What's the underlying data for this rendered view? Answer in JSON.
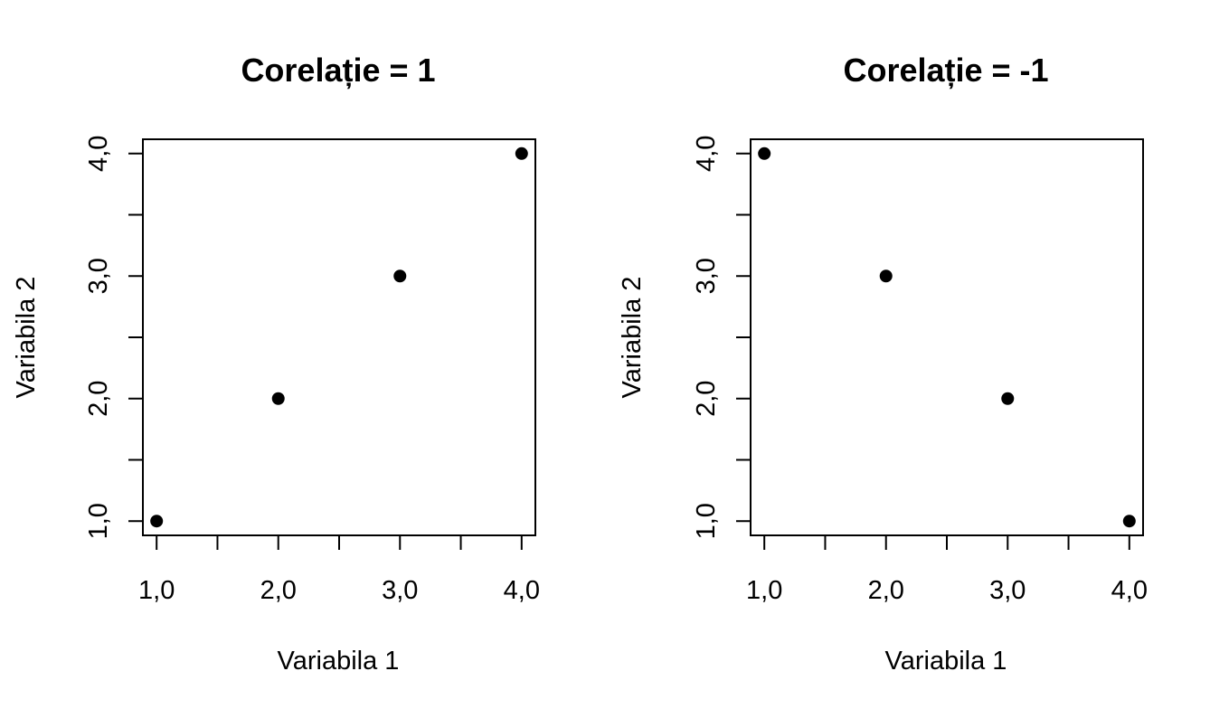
{
  "chart_data": [
    {
      "type": "scatter",
      "title": "Corelație = 1",
      "xlabel": "Variabila 1",
      "ylabel": "Variabila 2",
      "x": [
        1,
        2,
        3,
        4
      ],
      "y": [
        1,
        2,
        3,
        4
      ],
      "xlim": [
        1,
        4
      ],
      "ylim": [
        1,
        4
      ],
      "xticks": [
        1,
        1.5,
        2,
        2.5,
        3,
        3.5,
        4
      ],
      "yticks": [
        1,
        1.5,
        2,
        2.5,
        3,
        3.5,
        4
      ],
      "xtick_labels": [
        "1,0",
        "",
        "2,0",
        "",
        "3,0",
        "",
        "4,0"
      ],
      "ytick_labels": [
        "1,0",
        "",
        "2,0",
        "",
        "3,0",
        "",
        "4,0"
      ],
      "grid": false,
      "marker_color": "#000000"
    },
    {
      "type": "scatter",
      "title": "Corelație = -1",
      "xlabel": "Variabila 1",
      "ylabel": "Variabila 2",
      "x": [
        1,
        2,
        3,
        4
      ],
      "y": [
        4,
        3,
        2,
        1
      ],
      "xlim": [
        1,
        4
      ],
      "ylim": [
        1,
        4
      ],
      "xticks": [
        1,
        1.5,
        2,
        2.5,
        3,
        3.5,
        4
      ],
      "yticks": [
        1,
        1.5,
        2,
        2.5,
        3,
        3.5,
        4
      ],
      "xtick_labels": [
        "1,0",
        "",
        "2,0",
        "",
        "3,0",
        "",
        "4,0"
      ],
      "ytick_labels": [
        "1,0",
        "",
        "2,0",
        "",
        "3,0",
        "",
        "4,0"
      ],
      "grid": false,
      "marker_color": "#000000"
    }
  ]
}
